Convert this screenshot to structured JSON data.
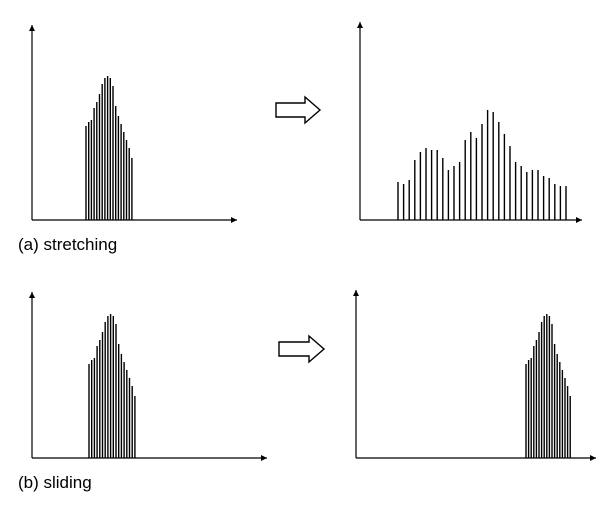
{
  "panels": [
    {
      "id": "stretching",
      "caption": "(a) stretching"
    },
    {
      "id": "sliding",
      "caption": "(b) sliding"
    }
  ],
  "colors": {
    "line": "#000000",
    "background": "#ffffff"
  },
  "icons": {
    "transform_arrow": "right-hollow-arrow-icon"
  }
}
